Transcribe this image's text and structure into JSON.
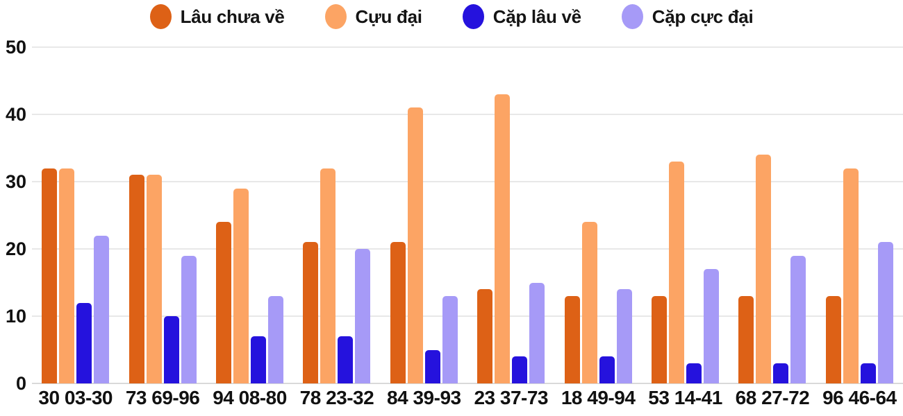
{
  "chart_data": {
    "type": "bar",
    "title": "",
    "xlabel": "",
    "ylabel": "",
    "ylim": [
      0,
      50
    ],
    "y_ticks": [
      0,
      10,
      20,
      30,
      40,
      50
    ],
    "grid": true,
    "legend_position": "top",
    "categories": [
      "30 03-30",
      "73 69-96",
      "94 08-80",
      "78 23-32",
      "84 39-93",
      "23 37-73",
      "18 49-94",
      "53 14-41",
      "68 27-72",
      "96 46-64"
    ],
    "series": [
      {
        "name": "Lâu chưa về",
        "color": "#dd6116",
        "values": [
          32,
          31,
          24,
          21,
          21,
          14,
          13,
          13,
          13,
          13
        ]
      },
      {
        "name": "Cựu đại",
        "color": "#fca464",
        "values": [
          32,
          31,
          29,
          32,
          41,
          43,
          24,
          33,
          34,
          32
        ]
      },
      {
        "name": "Cặp lâu về",
        "color": "#2512dd",
        "values": [
          12,
          10,
          7,
          7,
          5,
          4,
          4,
          3,
          3,
          3
        ]
      },
      {
        "name": "Cặp cực đại",
        "color": "#a69af7",
        "values": [
          22,
          19,
          13,
          20,
          13,
          15,
          14,
          17,
          19,
          21
        ]
      }
    ]
  },
  "colors": {
    "background": "#ffffff",
    "gridline": "#e8e8e8",
    "baseline": "#d9d9d9",
    "text": "#111111"
  }
}
